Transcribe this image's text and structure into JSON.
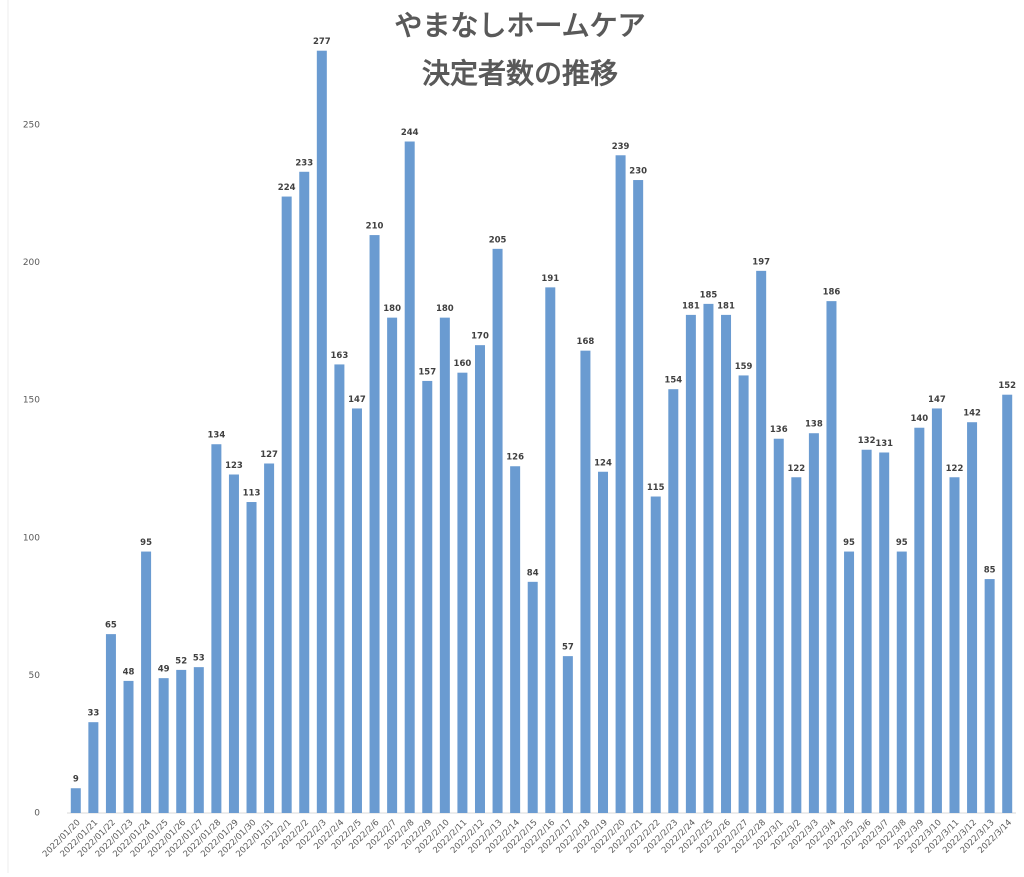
{
  "chart_data": {
    "type": "bar",
    "title": "やまなしホームケア",
    "subtitle": "決定者数の推移",
    "categories": [
      "2022/01/20",
      "2022/01/21",
      "2022/01/22",
      "2022/01/23",
      "2022/01/24",
      "2022/01/25",
      "2022/01/26",
      "2022/01/27",
      "2022/01/28",
      "2022/01/29",
      "2022/01/30",
      "2022/01/31",
      "2022/2/1",
      "2022/2/2",
      "2022/2/3",
      "2022/2/4",
      "2022/2/5",
      "2022/2/6",
      "2022/2/7",
      "2022/2/8",
      "2022/2/9",
      "2022/2/10",
      "2022/2/11",
      "2022/2/12",
      "2022/2/13",
      "2022/2/14",
      "2022/2/15",
      "2022/2/16",
      "2022/2/17",
      "2022/2/18",
      "2022/2/19",
      "2022/2/20",
      "2022/2/21",
      "2022/2/22",
      "2022/2/23",
      "2022/2/24",
      "2022/2/25",
      "2022/2/26",
      "2022/2/27",
      "2022/2/28",
      "2022/3/1",
      "2022/3/2",
      "2022/3/3",
      "2022/3/4",
      "2022/3/5",
      "2022/3/6",
      "2022/3/7",
      "2022/3/8",
      "2022/3/9",
      "2022/3/10",
      "2022/3/11",
      "2022/3/12",
      "2022/3/13",
      "2022/3/14"
    ],
    "values": [
      9,
      33,
      65,
      48,
      95,
      49,
      52,
      53,
      134,
      123,
      113,
      127,
      224,
      233,
      277,
      163,
      147,
      210,
      180,
      244,
      157,
      180,
      160,
      170,
      205,
      126,
      84,
      191,
      57,
      168,
      124,
      239,
      230,
      115,
      154,
      181,
      185,
      181,
      159,
      197,
      136,
      122,
      138,
      186,
      95,
      132,
      131,
      95,
      140,
      147,
      122,
      142,
      85,
      152
    ],
    "color": "#6a9bd1",
    "ylim": [
      0,
      280
    ],
    "yticks": [
      0,
      50,
      100,
      150,
      200,
      250
    ],
    "grid": false
  }
}
